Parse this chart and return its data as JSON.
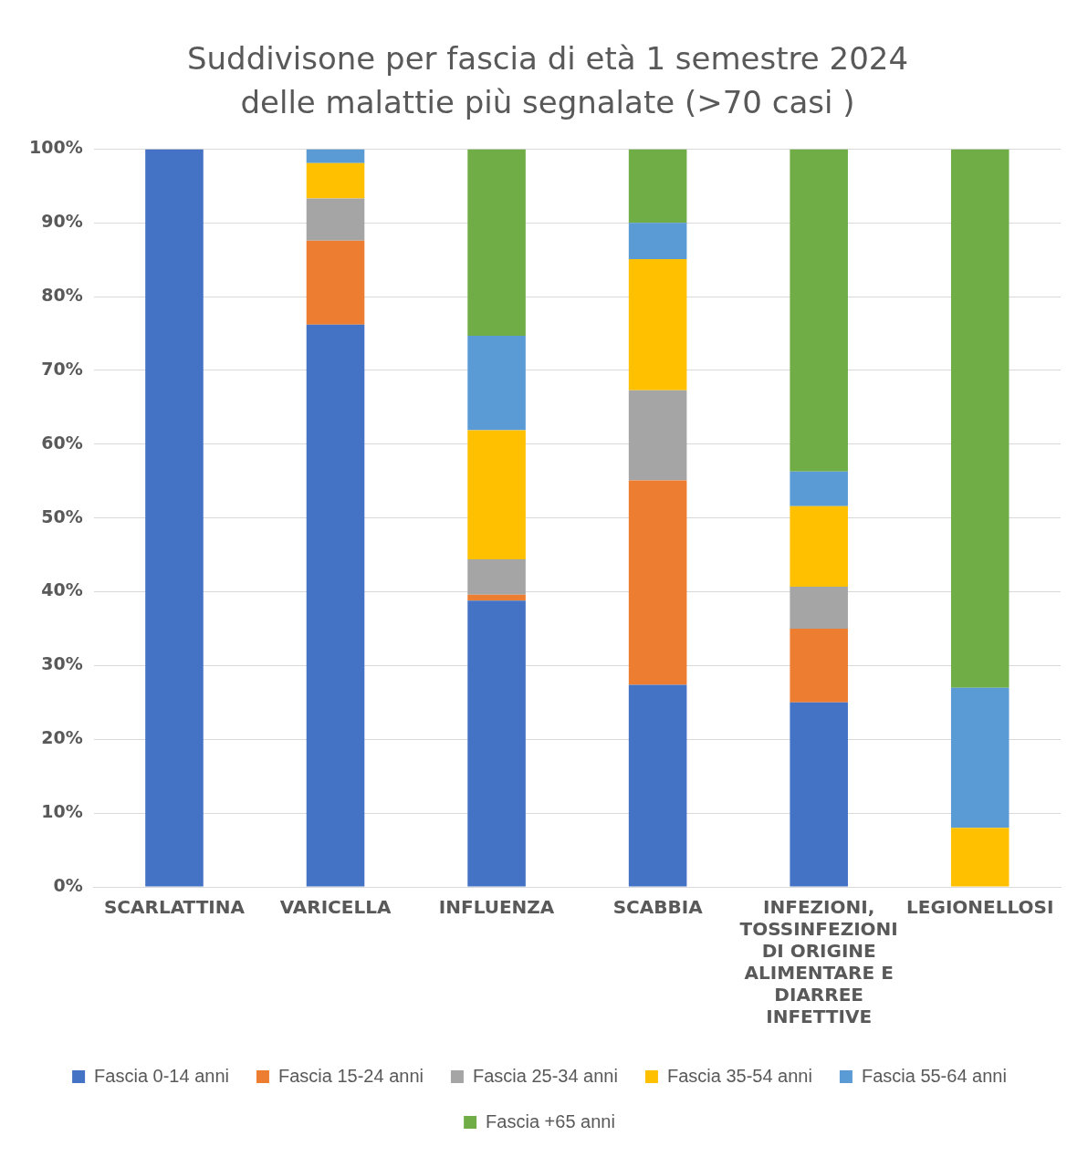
{
  "chart_data": {
    "type": "bar",
    "stacked": true,
    "title": "Suddivisone per fascia di età 1 semestre 2024 delle malattie più segnalate (>70 casi )",
    "categories": [
      "SCARLATTINA",
      "VARICELLA",
      "INFLUENZA",
      "SCABBIA",
      "INFEZIONI, TOSSINFEZIONI DI ORIGINE ALIMENTARE E DIARREE INFETTIVE",
      "LEGIONELLOSI"
    ],
    "series": [
      {
        "name": "Fascia 0-14 anni",
        "color": "#4472c4",
        "values": [
          100,
          76.2,
          38.8,
          27.4,
          25.0,
          0
        ]
      },
      {
        "name": "Fascia 15-24 anni",
        "color": "#ed7d31",
        "values": [
          0,
          11.4,
          0.8,
          27.7,
          10.0,
          0
        ]
      },
      {
        "name": "Fascia 25-34 anni",
        "color": "#a5a5a5",
        "values": [
          0,
          5.7,
          4.8,
          12.2,
          5.7,
          0
        ]
      },
      {
        "name": "Fascia 35-54 anni",
        "color": "#ffc000",
        "values": [
          0,
          4.8,
          17.5,
          17.8,
          10.9,
          8
        ]
      },
      {
        "name": "Fascia 55-64 anni",
        "color": "#5b9bd5",
        "values": [
          0,
          1.9,
          12.8,
          4.9,
          4.7,
          19
        ]
      },
      {
        "name": "Fascia +65 anni",
        "color": "#70ad47",
        "values": [
          0,
          0,
          25.3,
          10.0,
          43.7,
          73
        ]
      }
    ],
    "ylim": [
      0,
      100
    ],
    "yticks": [
      {
        "value": 0,
        "label": "0%"
      },
      {
        "value": 10,
        "label": "10%"
      },
      {
        "value": 20,
        "label": "20%"
      },
      {
        "value": 30,
        "label": "30%"
      },
      {
        "value": 40,
        "label": "40%"
      },
      {
        "value": 50,
        "label": "50%"
      },
      {
        "value": 60,
        "label": "60%"
      },
      {
        "value": 70,
        "label": "70%"
      },
      {
        "value": 80,
        "label": "80%"
      },
      {
        "value": 90,
        "label": "90%"
      },
      {
        "value": 100,
        "label": "100%"
      }
    ],
    "grid": "y",
    "legend": "bottom"
  }
}
